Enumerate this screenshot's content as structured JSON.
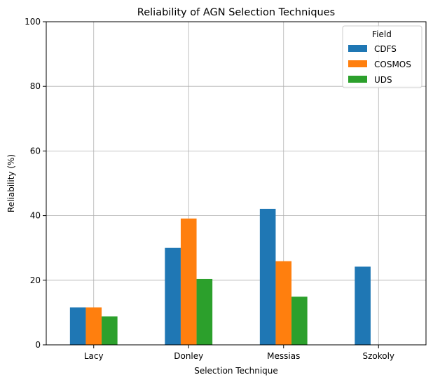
{
  "chart_data": {
    "type": "bar",
    "title": "Reliability of AGN Selection Techniques",
    "xlabel": "Selection Technique",
    "ylabel": "Reliability (%)",
    "categories": [
      "Lacy",
      "Donley",
      "Messias",
      "Szokoly"
    ],
    "series": [
      {
        "name": "CDFS",
        "color": "#1f77b4",
        "values": [
          11.6,
          30.0,
          42.1,
          24.2
        ]
      },
      {
        "name": "COSMOS",
        "color": "#ff7f0e",
        "values": [
          11.6,
          39.1,
          25.9,
          0
        ]
      },
      {
        "name": "UDS",
        "color": "#2ca02c",
        "values": [
          8.8,
          20.4,
          14.9,
          0
        ]
      }
    ],
    "ylim": [
      0,
      100
    ],
    "yticks": [
      0,
      20,
      40,
      60,
      80,
      100
    ],
    "grid": true,
    "legend": {
      "title": "Field",
      "placement": "top-right"
    }
  }
}
